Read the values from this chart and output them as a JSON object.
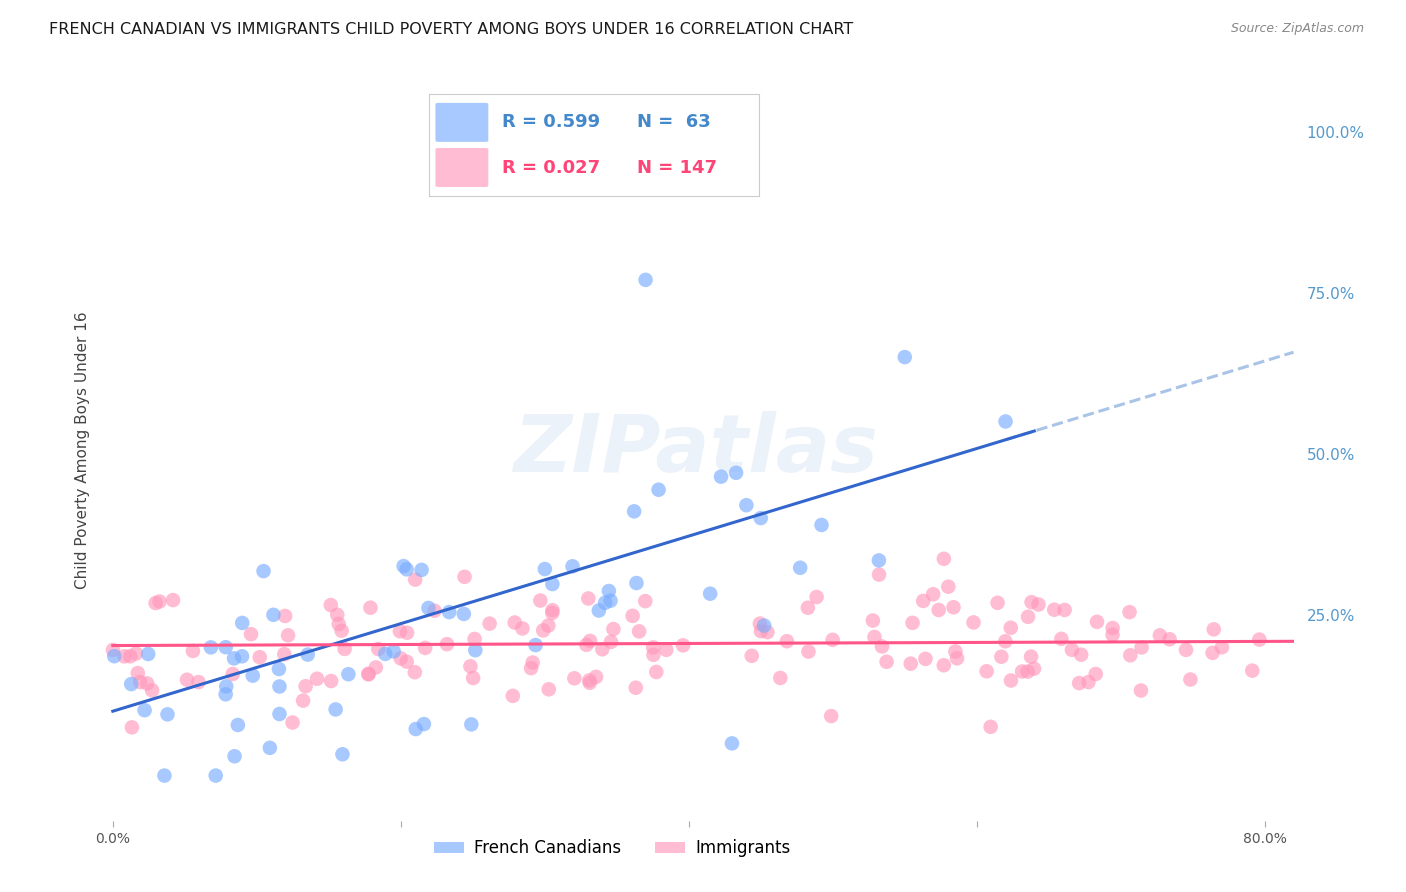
{
  "title": "FRENCH CANADIAN VS IMMIGRANTS CHILD POVERTY AMONG BOYS UNDER 16 CORRELATION CHART",
  "source": "Source: ZipAtlas.com",
  "xlabel_ticks": [
    "0.0%",
    "",
    "",
    "",
    "80.0%"
  ],
  "xlabel_tick_vals": [
    0.0,
    0.2,
    0.4,
    0.6,
    0.8
  ],
  "ylabel": "Child Poverty Among Boys Under 16",
  "ylabel_ticks": [
    "100.0%",
    "75.0%",
    "50.0%",
    "25.0%"
  ],
  "ylabel_tick_vals": [
    1.0,
    0.75,
    0.5,
    0.25
  ],
  "xlim": [
    -0.01,
    0.82
  ],
  "ylim": [
    -0.07,
    1.08
  ],
  "french_R": 0.599,
  "french_N": 63,
  "immigrant_R": 0.027,
  "immigrant_N": 147,
  "french_color": "#7aadff",
  "french_line_color": "#3366cc",
  "immigrant_color": "#ff99bb",
  "immigrant_line_color": "#ff5588",
  "trend_extension_color": "#aac4e8",
  "legend_label_french": "French Canadians",
  "legend_label_immigrant": "Immigrants",
  "legend_R_french": "R = 0.599",
  "legend_N_french": "N =  63",
  "legend_R_immigrant": "R = 0.027",
  "legend_N_immigrant": "N = 147",
  "watermark": "ZIPatlas",
  "background_color": "#ffffff",
  "grid_color": "#cccccc",
  "title_fontsize": 11.5,
  "axis_label_fontsize": 11,
  "tick_fontsize": 10,
  "legend_fontsize": 13,
  "source_fontsize": 9
}
